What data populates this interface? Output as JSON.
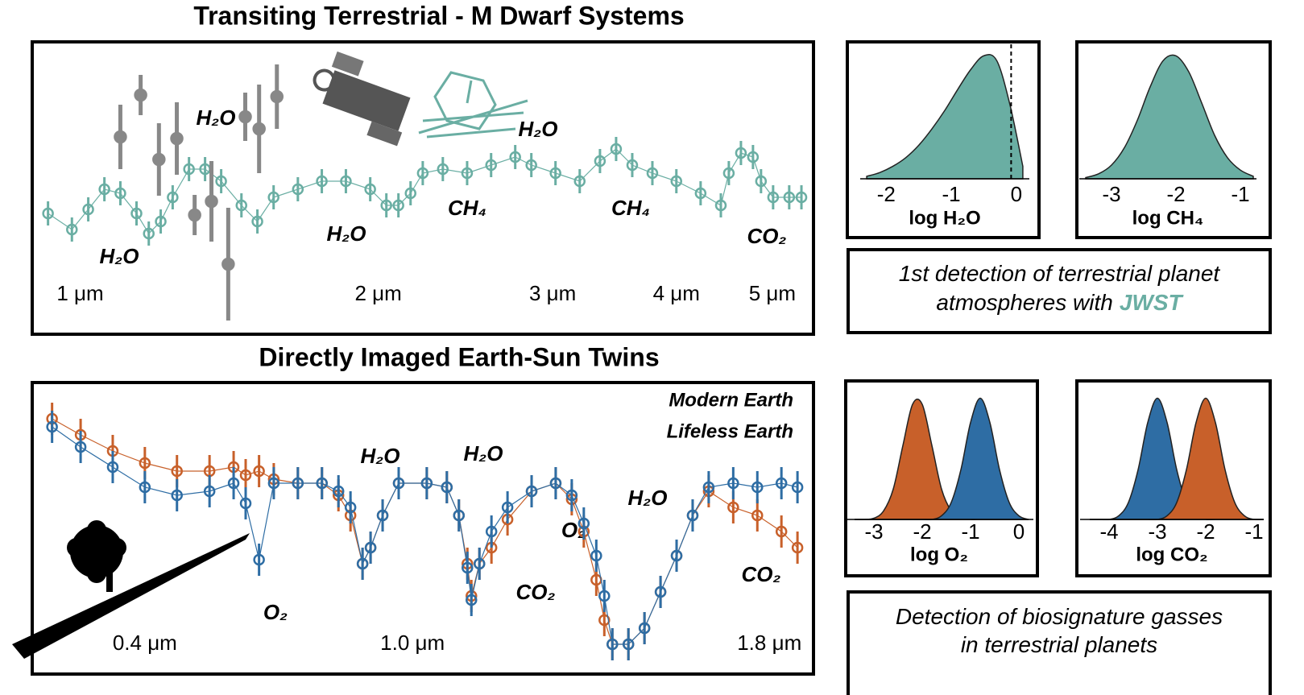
{
  "chart_data": [
    {
      "type": "errorbar",
      "title": "Transiting Terrestrial - M Dwarf Systems",
      "xscale": "log",
      "xlim": [
        0.92,
        5.4
      ],
      "ylim": [
        0,
        300
      ],
      "xticks": [
        {
          "value": 1,
          "label": "1 μm"
        },
        {
          "value": 2,
          "label": "2 μm"
        },
        {
          "value": 3,
          "label": "3 μm"
        },
        {
          "value": 4,
          "label": "4 μm"
        },
        {
          "value": 5,
          "label": "5 μm"
        }
      ],
      "annotations": [
        "H₂O",
        "H₂O",
        "H₂O",
        "H₂O",
        "CH₄",
        "CH₄",
        "CO₂"
      ],
      "series": [
        {
          "color": "#888888",
          "marker": "filled",
          "x": [
            1.098,
            1.151,
            1.201,
            1.252,
            1.305,
            1.357,
            1.411,
            1.468,
            1.516,
            1.58
          ],
          "values": [
            190,
            242,
            162,
            188,
            93,
            110,
            32,
            215,
            200,
            240
          ],
          "errors": [
            40,
            25,
            45,
            45,
            25,
            50,
            70,
            30,
            55,
            40
          ]
        },
        {
          "color": "#6aaea3",
          "marker": "open",
          "connect": true,
          "error": 15,
          "x": [
            0.928,
            0.981,
            1.019,
            1.058,
            1.098,
            1.14,
            1.173,
            1.206,
            1.24,
            1.288,
            1.337,
            1.388,
            1.455,
            1.51,
            1.568,
            1.659,
            1.754,
            1.855,
            1.963,
            2.038,
            2.096,
            2.156,
            2.218,
            2.324,
            2.459,
            2.6,
            2.75,
            2.855,
            3.02,
            3.195,
            3.349,
            3.477,
            3.61,
            3.783,
            4.0,
            4.232,
            4.436,
            4.519,
            4.648,
            4.78,
            4.87,
            5.009,
            5.2,
            5.35
          ],
          "values": [
            95,
            75,
            100,
            125,
            120,
            95,
            70,
            85,
            115,
            150,
            150,
            135,
            105,
            85,
            115,
            125,
            135,
            135,
            125,
            105,
            105,
            120,
            145,
            150,
            145,
            155,
            165,
            155,
            145,
            135,
            160,
            175,
            155,
            145,
            135,
            120,
            105,
            145,
            170,
            165,
            135,
            115,
            115,
            115
          ]
        }
      ]
    },
    {
      "type": "errorbar",
      "title": "Directly Imaged Earth-Sun Twins",
      "xlim": [
        0.18,
        1.87
      ],
      "ylim": [
        0,
        340
      ],
      "xticks": [
        {
          "value": 0.4,
          "label": "0.4 μm"
        },
        {
          "value": 1.0,
          "label": "1.0 μm"
        },
        {
          "value": 1.8,
          "label": "1.8 μm"
        }
      ],
      "annotations": [
        "H₂O",
        "H₂O",
        "H₂O",
        "O₂",
        "CO₂",
        "O₂",
        "CO₂"
      ],
      "x": [
        0.192,
        0.256,
        0.328,
        0.4,
        0.472,
        0.545,
        0.599,
        0.626,
        0.656,
        0.689,
        0.743,
        0.797,
        0.834,
        0.861,
        0.888,
        0.906,
        0.933,
        0.969,
        1.032,
        1.077,
        1.104,
        1.123,
        1.132,
        1.15,
        1.177,
        1.213,
        1.267,
        1.321,
        1.357,
        1.384,
        1.412,
        1.43,
        1.448,
        1.484,
        1.52,
        1.556,
        1.592,
        1.628,
        1.664,
        1.719,
        1.773,
        1.827,
        1.863
      ],
      "series": [
        {
          "name": "Modern Earth",
          "color": "#2e6da4",
          "marker": "open",
          "connect": true,
          "error": 20,
          "values": [
            300,
            275,
            250,
            225,
            215,
            220,
            230,
            205,
            135,
            230,
            230,
            230,
            220,
            200,
            130,
            150,
            190,
            230,
            230,
            225,
            190,
            125,
            85,
            130,
            170,
            200,
            220,
            230,
            215,
            180,
            140,
            90,
            30,
            30,
            50,
            95,
            140,
            190,
            225,
            230,
            225,
            230,
            225
          ]
        },
        {
          "name": "Lifeless Earth",
          "color": "#c8602a",
          "marker": "open",
          "connect": true,
          "error": 20,
          "values": [
            310,
            290,
            270,
            255,
            245,
            245,
            250,
            240,
            245,
            235,
            230,
            230,
            215,
            190,
            130,
            150,
            190,
            230,
            230,
            225,
            190,
            130,
            90,
            130,
            150,
            185,
            220,
            230,
            210,
            170,
            110,
            60,
            30,
            30,
            50,
            95,
            140,
            190,
            220,
            200,
            190,
            170,
            150
          ]
        }
      ]
    },
    {
      "type": "area",
      "xlabel": "log H₂O",
      "xlim": [
        -2.4,
        0.2
      ],
      "ylim": [
        0,
        1.05
      ],
      "xticks": [
        -2,
        -1,
        0
      ],
      "vline": -0.08,
      "x": [
        -2.3,
        -2.1,
        -1.9,
        -1.7,
        -1.5,
        -1.3,
        -1.1,
        -0.9,
        -0.7,
        -0.5,
        -0.3,
        -0.1,
        0.1
      ],
      "series": [
        {
          "color": "#6aaea3",
          "values": [
            0.02,
            0.05,
            0.1,
            0.17,
            0.27,
            0.4,
            0.55,
            0.72,
            0.88,
            0.99,
            0.95,
            0.6,
            0.1
          ]
        }
      ]
    },
    {
      "type": "area",
      "xlabel": "log CH₄",
      "xlim": [
        -3.5,
        -0.75
      ],
      "ylim": [
        0,
        1.05
      ],
      "xticks": [
        -3,
        -2,
        -1
      ],
      "x": [
        -3.4,
        -3.2,
        -3.0,
        -2.8,
        -2.6,
        -2.4,
        -2.2,
        -2.0,
        -1.8,
        -1.6,
        -1.4,
        -1.2,
        -1.0,
        -0.8
      ],
      "series": [
        {
          "color": "#6aaea3",
          "values": [
            0.01,
            0.04,
            0.11,
            0.25,
            0.47,
            0.74,
            0.95,
            0.99,
            0.86,
            0.61,
            0.35,
            0.17,
            0.07,
            0.02
          ]
        }
      ]
    },
    {
      "type": "area",
      "xlabel": "log O₂",
      "xlim": [
        -3.6,
        0.3
      ],
      "ylim": [
        0,
        1.05
      ],
      "xticks": [
        -3,
        -2,
        -1,
        0
      ],
      "x": [
        -3.4,
        -3.2,
        -3.0,
        -2.8,
        -2.6,
        -2.4,
        -2.2,
        -2.0,
        -1.8,
        -1.6,
        -1.4,
        -1.2,
        -1.0,
        -0.8,
        -0.6,
        -0.4,
        -0.2,
        0.0,
        0.2
      ],
      "series": [
        {
          "color": "#c8602a",
          "values": [
            0,
            0,
            0.01,
            0.07,
            0.25,
            0.61,
            0.95,
            0.95,
            0.61,
            0.25,
            0.07,
            0.01,
            0,
            0,
            0,
            0,
            0,
            0,
            0
          ]
        },
        {
          "color": "#2e6da4",
          "values": [
            0,
            0,
            0,
            0,
            0,
            0,
            0,
            0,
            0,
            0.03,
            0.14,
            0.41,
            0.8,
            1,
            0.8,
            0.41,
            0.14,
            0.03,
            0
          ]
        }
      ]
    },
    {
      "type": "area",
      "xlabel": "log CO₂",
      "xlim": [
        -4.6,
        -0.8
      ],
      "ylim": [
        0,
        1.05
      ],
      "xticks": [
        -4,
        -3,
        -2,
        -1
      ],
      "x": [
        -4.4,
        -4.2,
        -4.0,
        -3.8,
        -3.6,
        -3.4,
        -3.2,
        -3.0,
        -2.8,
        -2.6,
        -2.4,
        -2.2,
        -2.0,
        -1.8,
        -1.6,
        -1.4,
        -1.2,
        -1.0,
        -0.8
      ],
      "series": [
        {
          "color": "#2e6da4",
          "values": [
            0,
            0,
            0,
            0.03,
            0.14,
            0.41,
            0.8,
            1,
            0.8,
            0.41,
            0.14,
            0.03,
            0,
            0,
            0,
            0,
            0,
            0,
            0
          ]
        },
        {
          "color": "#c8602a",
          "values": [
            0,
            0,
            0,
            0,
            0,
            0,
            0,
            0,
            0.03,
            0.14,
            0.41,
            0.8,
            1,
            0.8,
            0.41,
            0.14,
            0.03,
            0,
            0
          ]
        }
      ]
    }
  ],
  "captions": [
    {
      "lines": [
        "1st detection of terrestrial planet",
        "atmospheres with"
      ],
      "highlight": "JWST"
    },
    {
      "lines": [
        "Detection of biosignature gasses",
        "in terrestrial planets"
      ]
    }
  ]
}
